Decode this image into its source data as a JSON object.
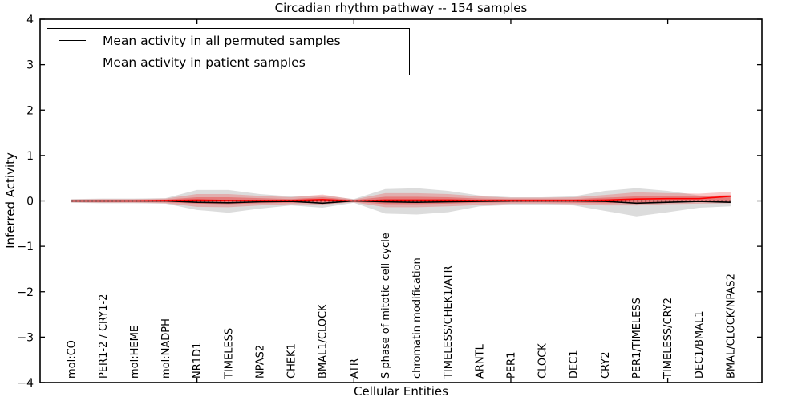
{
  "figure": {
    "title": "Circadian rhythm pathway -- 154 samples",
    "xlabel": "Cellular Entities",
    "ylabel": "Inferred Activity"
  },
  "chart_data": {
    "type": "line",
    "title": "Circadian rhythm pathway -- 154 samples",
    "xlabel": "Cellular Entities",
    "ylabel": "Inferred Activity",
    "ylim": [
      -4,
      4
    ],
    "xlim": [
      0,
      23
    ],
    "yticks": [
      -4,
      -3,
      -2,
      -1,
      0,
      1,
      2,
      3,
      4
    ],
    "xticks": [
      5,
      10,
      15,
      20
    ],
    "grid": false,
    "legend_position": "upper left",
    "categories": [
      "mol:CO",
      "PER1-2 / CRY1-2",
      "mol:HEME",
      "mol:NADPH",
      "NR1D1",
      "TIMELESS",
      "NPAS2",
      "CHEK1",
      "BMAL1/CLOCK",
      "ATR",
      "S phase of mitotic cell cycle",
      "chromatin modification",
      "TIMELESS/CHEK1/ATR",
      "ARNTL",
      "PER1",
      "CLOCK",
      "DEC1",
      "CRY2",
      "PER1/TIMELESS",
      "TIMELESS/CRY2",
      "DEC1/BMAL1",
      "BMAL/CLOCK/NPAS2"
    ],
    "series": [
      {
        "name": "Mean activity in all permuted samples",
        "color": "#000000",
        "style": "solid",
        "values": [
          0,
          0,
          0,
          0,
          -0.03,
          -0.04,
          -0.02,
          -0.01,
          -0.05,
          0,
          -0.02,
          -0.03,
          -0.02,
          -0.01,
          0,
          0,
          0,
          -0.01,
          -0.05,
          -0.03,
          -0.01,
          -0.03
        ]
      },
      {
        "name": "Mean activity in patient samples",
        "color": "#ff0000",
        "style": "solid",
        "values": [
          0,
          0,
          0,
          0.01,
          0.02,
          0.01,
          0.01,
          0.01,
          0.03,
          0,
          0.02,
          0.02,
          0.02,
          0.01,
          0.01,
          0.01,
          0.01,
          0.02,
          0.04,
          0.05,
          0.05,
          0.1
        ]
      }
    ],
    "zero_reference_line": {
      "value": 0,
      "style": "dotted",
      "color": "#000000"
    },
    "bands": [
      {
        "name": "permuted-activity-range",
        "color": "rgba(130,130,130,0.28)",
        "upper": [
          0.04,
          0.05,
          0.05,
          0.06,
          0.24,
          0.24,
          0.15,
          0.1,
          0.12,
          0.04,
          0.26,
          0.28,
          0.22,
          0.12,
          0.08,
          0.08,
          0.1,
          0.22,
          0.28,
          0.22,
          0.12,
          0.1
        ],
        "lower": [
          -0.04,
          -0.05,
          -0.05,
          -0.06,
          -0.2,
          -0.26,
          -0.17,
          -0.1,
          -0.15,
          -0.04,
          -0.28,
          -0.3,
          -0.25,
          -0.12,
          -0.09,
          -0.08,
          -0.1,
          -0.22,
          -0.34,
          -0.25,
          -0.15,
          -0.12
        ]
      },
      {
        "name": "patient-activity-range-outer",
        "color": "rgba(240,70,70,0.30)",
        "upper": [
          0.03,
          0.04,
          0.04,
          0.05,
          0.15,
          0.15,
          0.11,
          0.08,
          0.14,
          0.03,
          0.17,
          0.17,
          0.15,
          0.1,
          0.07,
          0.07,
          0.08,
          0.13,
          0.19,
          0.17,
          0.16,
          0.2
        ],
        "lower": [
          -0.03,
          -0.04,
          -0.04,
          -0.05,
          -0.13,
          -0.14,
          -0.1,
          -0.07,
          -0.08,
          -0.03,
          -0.14,
          -0.14,
          -0.12,
          -0.09,
          -0.06,
          -0.06,
          -0.07,
          -0.1,
          -0.1,
          -0.07,
          -0.06,
          -0.05
        ]
      },
      {
        "name": "patient-activity-range-inner",
        "color": "rgba(235,50,50,0.40)",
        "upper": [
          0.015,
          0.02,
          0.02,
          0.03,
          0.08,
          0.08,
          0.06,
          0.04,
          0.08,
          0.02,
          0.09,
          0.09,
          0.08,
          0.05,
          0.04,
          0.04,
          0.04,
          0.07,
          0.1,
          0.1,
          0.1,
          0.13
        ],
        "lower": [
          -0.015,
          -0.02,
          -0.02,
          -0.03,
          -0.06,
          -0.07,
          -0.05,
          -0.04,
          -0.03,
          -0.02,
          -0.07,
          -0.07,
          -0.06,
          -0.04,
          -0.03,
          -0.03,
          -0.04,
          -0.05,
          -0.04,
          -0.03,
          -0.02,
          -0.02
        ]
      }
    ]
  }
}
